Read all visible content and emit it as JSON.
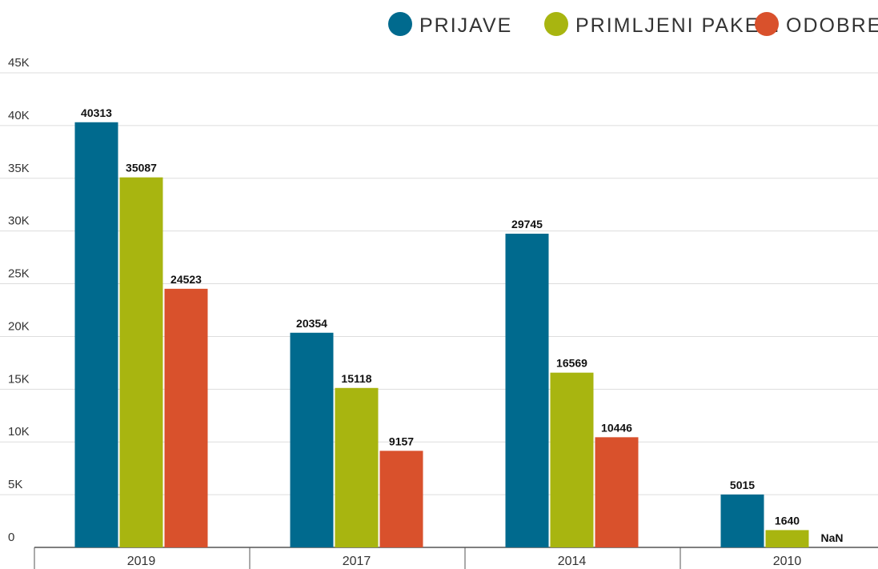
{
  "chart_data": {
    "type": "bar",
    "categories": [
      "2019",
      "2017",
      "2014",
      "2010"
    ],
    "series": [
      {
        "name": "PRIJAVE",
        "color": "#006a8e",
        "values": [
          40313,
          20354,
          29745,
          5015
        ]
      },
      {
        "name": "PRIMLJENI PAKETI",
        "color": "#a8b510",
        "values": [
          35087,
          15118,
          16569,
          1640
        ]
      },
      {
        "name": "ODOBRENO",
        "color": "#d9512c",
        "values": [
          24523,
          9157,
          10446,
          null
        ],
        "value_labels": [
          "24523",
          "9157",
          "10446",
          "NaN"
        ]
      }
    ],
    "ylim": [
      0,
      45000
    ],
    "yticks": [
      0,
      {
        "value": 5000,
        "label": "5K"
      },
      {
        "value": 10000,
        "label": "10K"
      },
      {
        "value": 15000,
        "label": "15K"
      },
      {
        "value": 20000,
        "label": "20K"
      },
      {
        "value": 25000,
        "label": "25K"
      },
      {
        "value": 30000,
        "label": "30K"
      },
      {
        "value": 35000,
        "label": "35K"
      },
      {
        "value": 40000,
        "label": "40K"
      },
      {
        "value": 45000,
        "label": "45K"
      }
    ],
    "grid": true
  }
}
